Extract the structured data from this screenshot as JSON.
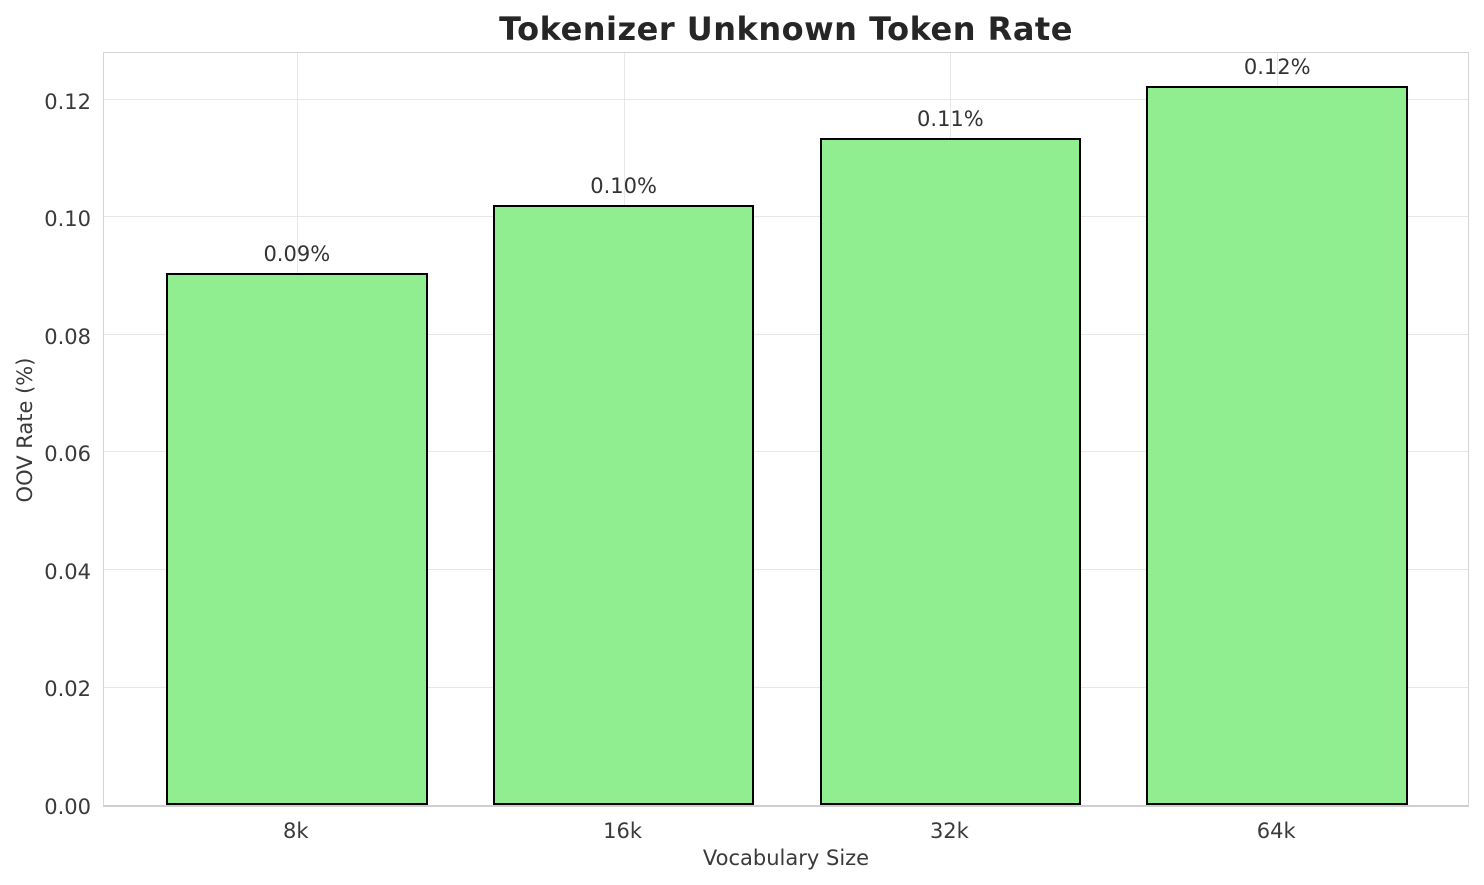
{
  "chart_data": {
    "type": "bar",
    "title": "Tokenizer Unknown Token Rate",
    "xlabel": "Vocabulary Size",
    "ylabel": "OOV Rate (%)",
    "categories": [
      "8k",
      "16k",
      "32k",
      "64k"
    ],
    "values": [
      0.0905,
      0.1022,
      0.1136,
      0.1223
    ],
    "bar_labels": [
      "0.09%",
      "0.10%",
      "0.11%",
      "0.12%"
    ],
    "ytick_labels": [
      "0.00",
      "0.02",
      "0.04",
      "0.06",
      "0.08",
      "0.10",
      "0.12"
    ],
    "yticks": [
      0.0,
      0.02,
      0.04,
      0.06,
      0.08,
      0.1,
      0.12
    ],
    "ylim": [
      0,
      0.1285
    ],
    "grid": true,
    "legend": "none",
    "colors": {
      "bar_fill": "#90EE90",
      "bar_edge": "#000000",
      "grid": "#e7e7e7",
      "spine": "#d5d5d5",
      "title_text": "#262626",
      "tick_text": "#3a3a3a",
      "annotation_text": "#333333",
      "background": "#ffffff"
    }
  }
}
